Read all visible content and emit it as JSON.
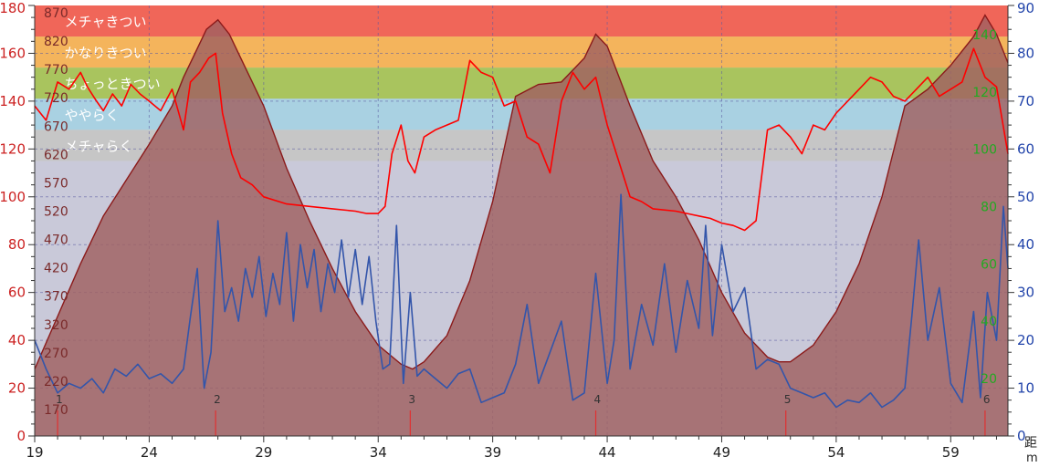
{
  "chart_data": {
    "type": "line",
    "title": "",
    "x_axis": {
      "range": [
        19,
        61.5
      ],
      "ticks": [
        "19",
        "24",
        "29",
        "34",
        "39",
        "44",
        "49",
        "54",
        "59"
      ],
      "tick_values": [
        19,
        24,
        29,
        34,
        39,
        44,
        49,
        54,
        59
      ],
      "label_fragments": [
        "距",
        "m"
      ]
    },
    "y_axis_left": {
      "range": [
        0,
        180
      ],
      "ticks": [
        "0",
        "20",
        "40",
        "60",
        "80",
        "100",
        "120",
        "140",
        "160",
        "180"
      ]
    },
    "y_axis_right": {
      "range": [
        0,
        90
      ],
      "ticks": [
        "0",
        "10",
        "20",
        "30",
        "40",
        "50",
        "60",
        "70",
        "80",
        "90"
      ]
    },
    "y_axis_inner_left": {
      "ticks": [
        "170",
        "220",
        "270",
        "320",
        "370",
        "420",
        "470",
        "520",
        "570",
        "620",
        "670",
        "720",
        "770",
        "820",
        "870"
      ]
    },
    "y_axis_inner_right": {
      "ticks": [
        "20",
        "40",
        "60",
        "80",
        "100",
        "120",
        "140"
      ]
    },
    "zones": [
      {
        "label": "メチャきつい",
        "from": 167,
        "to": 180,
        "color": "#f06659"
      },
      {
        "label": "かなりきつい",
        "from": 154,
        "to": 167,
        "color": "#f4b45c"
      },
      {
        "label": "ちょっときつい",
        "from": 141,
        "to": 154,
        "color": "#a9c45e"
      },
      {
        "label": "ややらく",
        "from": 128,
        "to": 141,
        "color": "#a9d1e2"
      },
      {
        "label": "メチャらく",
        "from": 115,
        "to": 128,
        "color": "#c6c6c6"
      }
    ],
    "zone_labels_visible": [
      "メチャきつい",
      "かなりきつい",
      "ちょっときつい",
      "ややらく",
      "メチャらく"
    ],
    "laps": [
      {
        "label": "1",
        "x": 20
      },
      {
        "label": "2",
        "x": 26.9
      },
      {
        "label": "3",
        "x": 35.4
      },
      {
        "label": "4",
        "x": 43.5
      },
      {
        "label": "5",
        "x": 51.8
      },
      {
        "label": "6",
        "x": 60.5
      }
    ],
    "series": [
      {
        "kind": "area",
        "axis": "left",
        "color": "#8b1a1a",
        "fill": "#a06060",
        "x": [
          19,
          20,
          21,
          22,
          23,
          24,
          25,
          25.5,
          26,
          26.5,
          27,
          27.5,
          28,
          29,
          30,
          31,
          32,
          33,
          34,
          35,
          35.5,
          36,
          37,
          38,
          39,
          40,
          41,
          42,
          43,
          43.5,
          44,
          45,
          46,
          47,
          48,
          49,
          50,
          51,
          51.5,
          52,
          53,
          54,
          55,
          56,
          57,
          58,
          59,
          60,
          60.5,
          61,
          61.5
        ],
        "values": [
          28,
          50,
          72,
          92,
          107,
          122,
          138,
          150,
          160,
          170,
          174,
          168,
          158,
          138,
          112,
          90,
          70,
          52,
          38,
          30,
          28,
          31,
          42,
          65,
          98,
          142,
          147,
          148,
          158,
          168,
          163,
          138,
          115,
          100,
          82,
          60,
          43,
          33,
          31,
          31,
          38,
          52,
          72,
          100,
          138,
          145,
          155,
          167,
          176,
          168,
          156
        ]
      },
      {
        "kind": "line",
        "axis": "left",
        "color": "#ff0000",
        "x": [
          19,
          19.5,
          20,
          20.5,
          21,
          21.3,
          21.7,
          22,
          22.4,
          22.8,
          23.2,
          23.6,
          24,
          24.5,
          25,
          25.5,
          25.8,
          26.2,
          26.6,
          26.9,
          27.2,
          27.6,
          28,
          28.5,
          29,
          30,
          31,
          32,
          33,
          33.5,
          34,
          34.3,
          34.6,
          35,
          35.3,
          35.6,
          36,
          36.5,
          37,
          37.5,
          38,
          38.5,
          39,
          39.5,
          40,
          40.5,
          41,
          41.5,
          42,
          42.5,
          43,
          43.5,
          44,
          44.5,
          45,
          45.5,
          46,
          47,
          48,
          48.5,
          49,
          49.5,
          50,
          50.5,
          51,
          51.5,
          52,
          52.5,
          53,
          53.5,
          54,
          54.5,
          55,
          55.5,
          56,
          56.5,
          57,
          57.5,
          58,
          58.5,
          59,
          59.5,
          60,
          60.5,
          61,
          61.5
        ],
        "values": [
          138,
          132,
          148,
          145,
          152,
          146,
          140,
          136,
          143,
          138,
          147,
          143,
          140,
          136,
          145,
          128,
          148,
          152,
          158,
          160,
          135,
          118,
          108,
          105,
          100,
          97,
          96,
          95,
          94,
          93,
          93,
          96,
          118,
          130,
          115,
          110,
          125,
          128,
          130,
          132,
          157,
          152,
          150,
          138,
          140,
          125,
          122,
          110,
          140,
          152,
          145,
          150,
          130,
          115,
          100,
          98,
          95,
          94,
          92,
          91,
          89,
          88,
          86,
          90,
          128,
          130,
          125,
          118,
          130,
          128,
          135,
          140,
          145,
          150,
          148,
          142,
          140,
          145,
          150,
          142,
          145,
          148,
          162,
          150,
          146,
          118
        ]
      },
      {
        "kind": "line",
        "axis": "left",
        "color": "#3355aa",
        "x": [
          19,
          19.5,
          20,
          20.5,
          21,
          21.5,
          22,
          22.5,
          23,
          23.5,
          24,
          24.5,
          25,
          25.5,
          25.8,
          26.1,
          26.4,
          26.7,
          27,
          27.3,
          27.6,
          27.9,
          28.2,
          28.5,
          28.8,
          29.1,
          29.4,
          29.7,
          30,
          30.3,
          30.6,
          30.9,
          31.2,
          31.5,
          31.8,
          32.1,
          32.4,
          32.7,
          33,
          33.3,
          33.6,
          33.9,
          34.2,
          34.5,
          34.8,
          35.1,
          35.4,
          35.7,
          36,
          36.5,
          37,
          37.5,
          38,
          38.5,
          39,
          39.5,
          40,
          40.5,
          41,
          41.5,
          42,
          42.5,
          43,
          43.5,
          44,
          44.3,
          44.6,
          45,
          45.5,
          46,
          46.5,
          47,
          47.5,
          48,
          48.3,
          48.6,
          49,
          49.5,
          50,
          50.5,
          51,
          51.5,
          52,
          52.5,
          53,
          53.5,
          54,
          54.5,
          55,
          55.5,
          56,
          56.5,
          57,
          57.3,
          57.6,
          58,
          58.5,
          59,
          59.5,
          60,
          60.3,
          60.6,
          61,
          61.3,
          61.5
        ],
        "values": [
          40,
          28,
          18,
          22,
          20,
          24,
          18,
          28,
          25,
          30,
          24,
          26,
          22,
          28,
          50,
          70,
          20,
          35,
          90,
          52,
          62,
          48,
          70,
          58,
          75,
          50,
          68,
          55,
          85,
          48,
          80,
          62,
          78,
          52,
          72,
          60,
          82,
          58,
          78,
          55,
          75,
          48,
          28,
          30,
          88,
          22,
          60,
          25,
          28,
          24,
          20,
          26,
          28,
          14,
          16,
          18,
          30,
          55,
          22,
          35,
          48,
          15,
          18,
          68,
          22,
          40,
          101,
          28,
          55,
          38,
          72,
          35,
          65,
          45,
          88,
          42,
          80,
          52,
          62,
          28,
          32,
          30,
          20,
          18,
          16,
          18,
          12,
          15,
          14,
          18,
          12,
          15,
          20,
          50,
          82,
          40,
          62,
          22,
          14,
          52,
          16,
          60,
          40,
          96,
          70
        ]
      }
    ]
  }
}
